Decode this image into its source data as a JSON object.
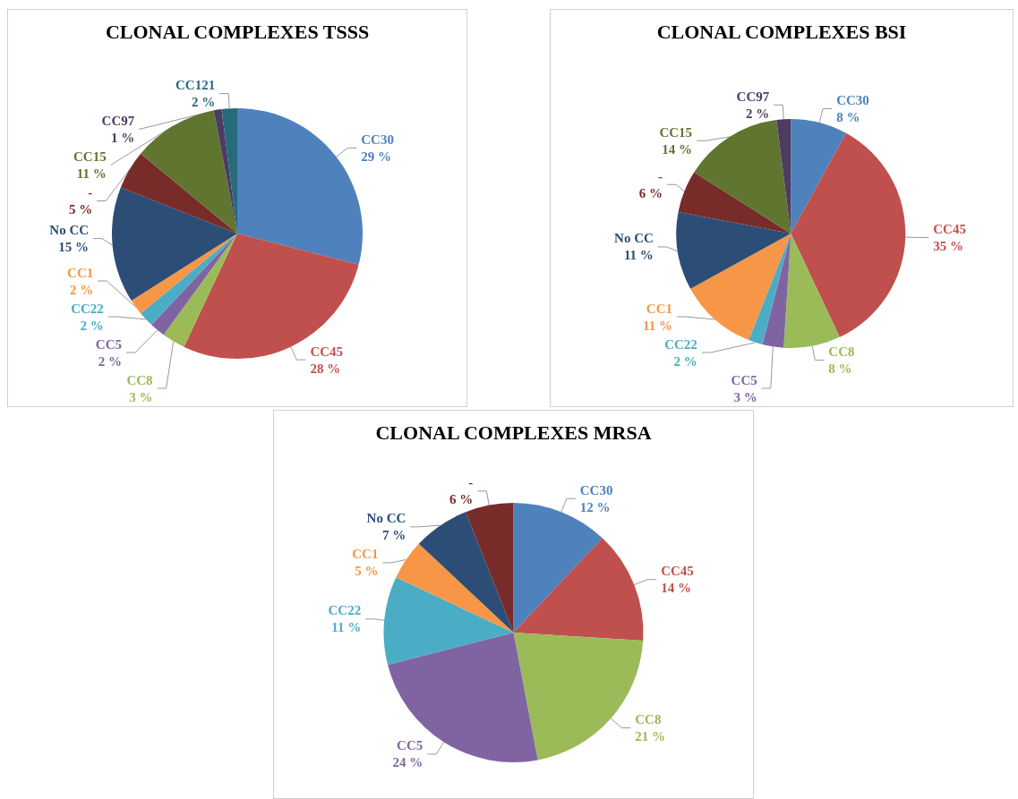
{
  "chart_data": [
    {
      "type": "pie",
      "title": "CLONAL COMPLEXES TSSS",
      "categories": [
        "CC30",
        "CC45",
        "CC8",
        "CC5",
        "CC22",
        "CC1",
        "No CC",
        "-",
        "CC15",
        "CC97",
        "CC121"
      ],
      "values": [
        29,
        28,
        3,
        2,
        2,
        2,
        15,
        5,
        11,
        1,
        2
      ],
      "value_labels": [
        "29 %",
        "28 %",
        "3 %",
        "2 %",
        "2 %",
        "2 %",
        "15 %",
        "5 %",
        "11 %",
        "1 %",
        "2 %"
      ],
      "colors": [
        "#4f81bd",
        "#c0504d",
        "#9bbb59",
        "#8064a2",
        "#4bacc6",
        "#f79646",
        "#2c4d75",
        "#772c2a",
        "#5f7530",
        "#4d3b62",
        "#276a7c"
      ]
    },
    {
      "type": "pie",
      "title": "CLONAL COMPLEXES BSI",
      "categories": [
        "CC30",
        "CC45",
        "CC8",
        "CC5",
        "CC22",
        "CC1",
        "No CC",
        "-",
        "CC15",
        "CC97"
      ],
      "values": [
        8,
        35,
        8,
        3,
        2,
        11,
        11,
        6,
        14,
        2
      ],
      "value_labels": [
        "8 %",
        "35 %",
        "8 %",
        "3 %",
        "2 %",
        "11 %",
        "11 %",
        "6 %",
        "14 %",
        "2 %"
      ],
      "colors": [
        "#4f81bd",
        "#c0504d",
        "#9bbb59",
        "#8064a2",
        "#4bacc6",
        "#f79646",
        "#2c4d75",
        "#772c2a",
        "#5f7530",
        "#4d3b62"
      ]
    },
    {
      "type": "pie",
      "title": "CLONAL COMPLEXES MRSA",
      "categories": [
        "CC30",
        "CC45",
        "CC8",
        "CC5",
        "CC22",
        "CC1",
        "No CC",
        "-"
      ],
      "values": [
        12,
        14,
        21,
        24,
        11,
        5,
        7,
        6
      ],
      "value_labels": [
        "12 %",
        "14 %",
        "21 %",
        "24 %",
        "11 %",
        "5 %",
        "7 %",
        "6 %"
      ],
      "colors": [
        "#4f81bd",
        "#c0504d",
        "#9bbb59",
        "#8064a2",
        "#4bacc6",
        "#f79646",
        "#2c4d75",
        "#772c2a"
      ]
    }
  ]
}
